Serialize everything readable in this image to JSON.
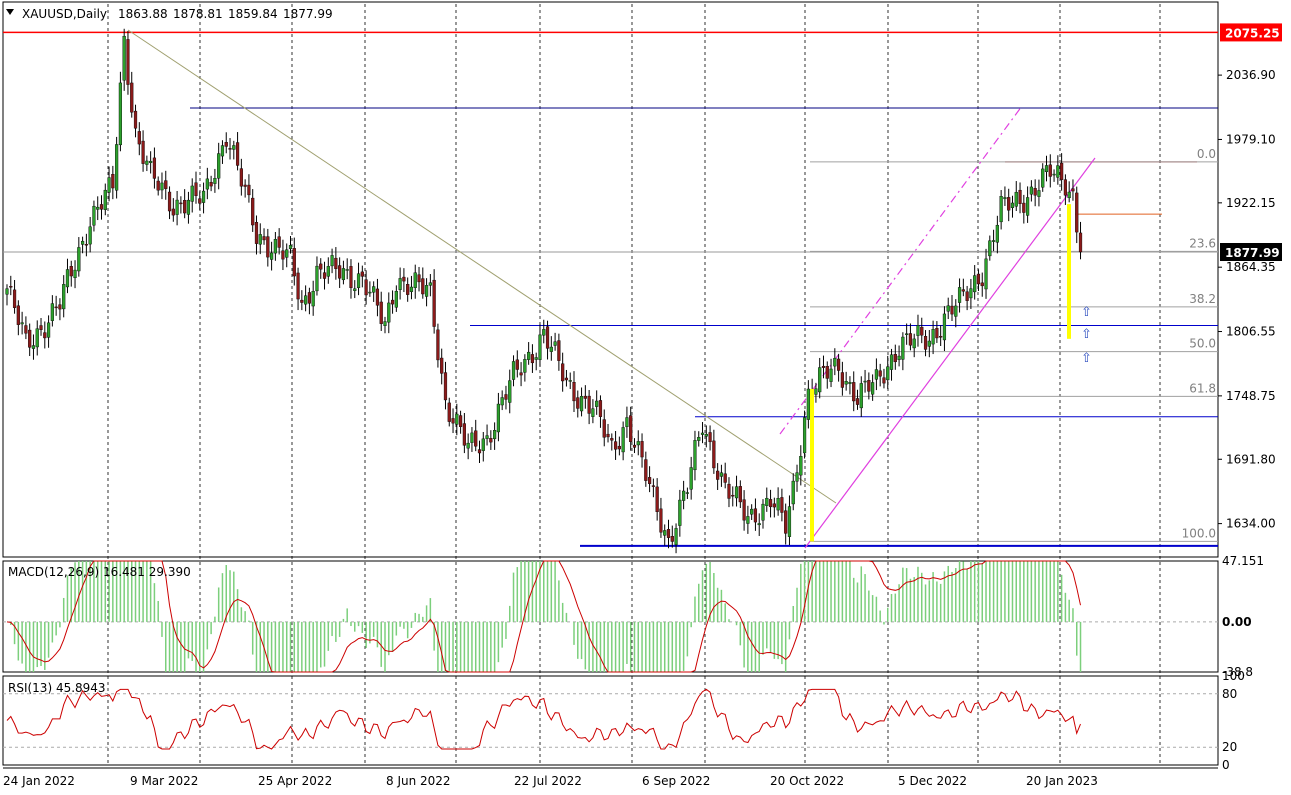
{
  "chart_data": {
    "type": "candlestick",
    "instrument": "XAUUSD",
    "timeframe": "Daily",
    "title": "XAUUSD,Daily",
    "ohlc_readout": [
      "1863.88",
      "1878.81",
      "1859.84",
      "1877.99"
    ],
    "current_price": 1877.99,
    "current_price_label": "1877.99",
    "resistance_level": 2075.25,
    "resistance_label": "2075.25",
    "ylim": [
      1604,
      2090
    ],
    "y_ticks": [
      2036.9,
      1979.1,
      1922.15,
      1864.35,
      1806.55,
      1748.75,
      1691.8,
      1634.0
    ],
    "y_tick_labels": [
      "2036.90",
      "1979.10",
      "1922.15",
      "1864.35",
      "1806.55",
      "1748.75",
      "1691.80",
      "1634.00"
    ],
    "x_labels": [
      "24 Jan 2022",
      "9 Mar 2022",
      "25 Apr 2022",
      "8 Jun 2022",
      "22 Jul 2022",
      "6 Sep 2022",
      "20 Oct 2022",
      "5 Dec 2022",
      "20 Jan 2023"
    ],
    "key_points": [
      {
        "bar": 0,
        "price": 1845
      },
      {
        "bar": 5,
        "price": 1795
      },
      {
        "bar": 14,
        "price": 1830
      },
      {
        "bar": 22,
        "price": 1908
      },
      {
        "bar": 28,
        "price": 1935
      },
      {
        "bar": 31,
        "price": 2070
      },
      {
        "bar": 34,
        "price": 1985
      },
      {
        "bar": 38,
        "price": 1945
      },
      {
        "bar": 44,
        "price": 1922
      },
      {
        "bar": 52,
        "price": 1925
      },
      {
        "bar": 58,
        "price": 1985
      },
      {
        "bar": 66,
        "price": 1895
      },
      {
        "bar": 75,
        "price": 1870
      },
      {
        "bar": 78,
        "price": 1830
      },
      {
        "bar": 82,
        "price": 1860
      },
      {
        "bar": 88,
        "price": 1860
      },
      {
        "bar": 94,
        "price": 1855
      },
      {
        "bar": 100,
        "price": 1810
      },
      {
        "bar": 103,
        "price": 1855
      },
      {
        "bar": 112,
        "price": 1840
      },
      {
        "bar": 116,
        "price": 1745
      },
      {
        "bar": 122,
        "price": 1700
      },
      {
        "bar": 127,
        "price": 1712
      },
      {
        "bar": 134,
        "price": 1765
      },
      {
        "bar": 142,
        "price": 1805
      },
      {
        "bar": 148,
        "price": 1760
      },
      {
        "bar": 155,
        "price": 1738
      },
      {
        "bar": 160,
        "price": 1700
      },
      {
        "bar": 164,
        "price": 1728
      },
      {
        "bar": 170,
        "price": 1665
      },
      {
        "bar": 175,
        "price": 1620
      },
      {
        "bar": 180,
        "price": 1665
      },
      {
        "bar": 184,
        "price": 1725
      },
      {
        "bar": 190,
        "price": 1665
      },
      {
        "bar": 196,
        "price": 1640
      },
      {
        "bar": 202,
        "price": 1655
      },
      {
        "bar": 206,
        "price": 1630
      },
      {
        "bar": 208,
        "price": 1665
      },
      {
        "bar": 212,
        "price": 1752
      },
      {
        "bar": 216,
        "price": 1765
      },
      {
        "bar": 220,
        "price": 1775
      },
      {
        "bar": 225,
        "price": 1748
      },
      {
        "bar": 230,
        "price": 1760
      },
      {
        "bar": 236,
        "price": 1795
      },
      {
        "bar": 244,
        "price": 1800
      },
      {
        "bar": 248,
        "price": 1820
      },
      {
        "bar": 253,
        "price": 1835
      },
      {
        "bar": 258,
        "price": 1862
      },
      {
        "bar": 263,
        "price": 1915
      },
      {
        "bar": 270,
        "price": 1930
      },
      {
        "bar": 276,
        "price": 1948
      },
      {
        "bar": 280,
        "price": 1942
      },
      {
        "bar": 282,
        "price": 1930
      },
      {
        "bar": 284,
        "price": 1878
      }
    ],
    "fibonacci": {
      "levels": [
        {
          "label": "0.0",
          "ratio": 0.0
        },
        {
          "label": "23.6",
          "ratio": 0.236
        },
        {
          "label": "38.2",
          "ratio": 0.382
        },
        {
          "label": "50.0",
          "ratio": 0.5
        },
        {
          "label": "61.8",
          "ratio": 0.618
        },
        {
          "label": "100.0",
          "ratio": 1.0
        }
      ],
      "high": 1959,
      "low": 1618
    },
    "macd": {
      "label": "MACD(12,26,9) 16.481 29.390",
      "ylim": [
        -38.8,
        47.151
      ],
      "y_tick_labels": [
        "47.151",
        "0.00",
        "-38.8"
      ]
    },
    "rsi": {
      "label": "RSI(13) 45.8943",
      "y_tick_labels": [
        "100",
        "80",
        "20",
        "0"
      ]
    },
    "colors": {
      "bull": "#2ca02c",
      "bear": "#8b1a1a",
      "resistance": "#ff0000",
      "channel": "#e040e0",
      "support": "#0000cc",
      "fib": "#a0a0a0",
      "highlight": "#ffff00",
      "macd_signal": "#cc0000",
      "macd_hist": "#7ccf7c",
      "rsi": "#cc0000"
    }
  }
}
